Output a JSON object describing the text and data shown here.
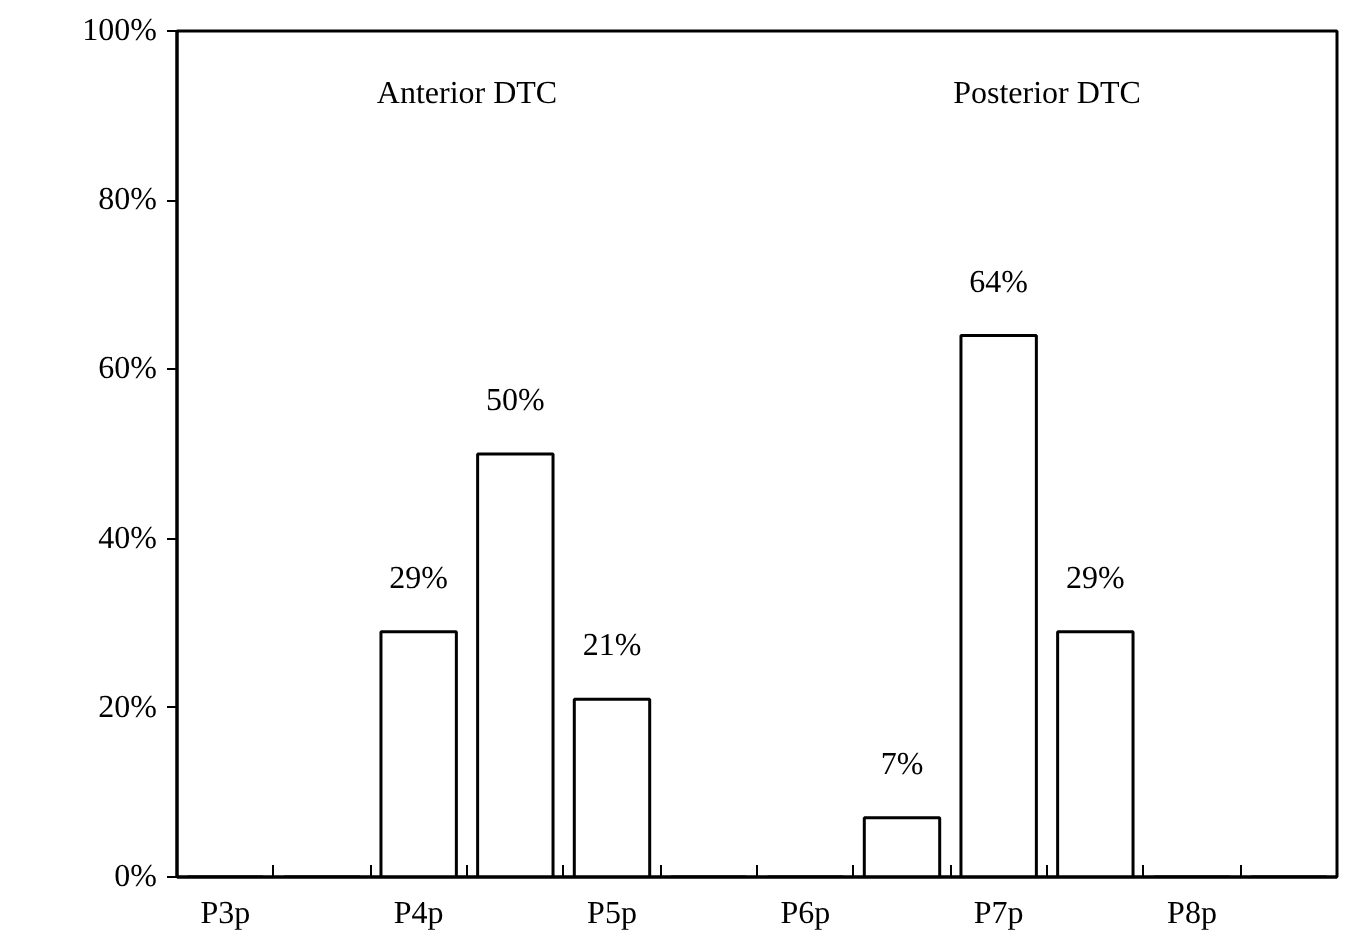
{
  "chart_data": {
    "type": "bar",
    "categories": [
      "P3p",
      null,
      "P4p",
      null,
      "P5p",
      null,
      "P6p",
      null,
      "P7p",
      null,
      "P8p",
      null
    ],
    "values": [
      0,
      0,
      29,
      50,
      21,
      0,
      0,
      7,
      64,
      29,
      0,
      0
    ],
    "value_labels": [
      null,
      null,
      "29%",
      "50%",
      "21%",
      null,
      null,
      "7%",
      "64%",
      "29%",
      null,
      null
    ],
    "color": "#ffffff",
    "ylim": [
      0,
      100
    ],
    "yticks": [
      {
        "value": 0,
        "label": "0%"
      },
      {
        "value": 20,
        "label": "20%"
      },
      {
        "value": 40,
        "label": "40%"
      },
      {
        "value": 60,
        "label": "60%"
      },
      {
        "value": 80,
        "label": "80%"
      },
      {
        "value": 100,
        "label": "100%"
      }
    ],
    "annotations": [
      "Anterior DTC",
      "Posterior DTC"
    ],
    "grid": false
  }
}
